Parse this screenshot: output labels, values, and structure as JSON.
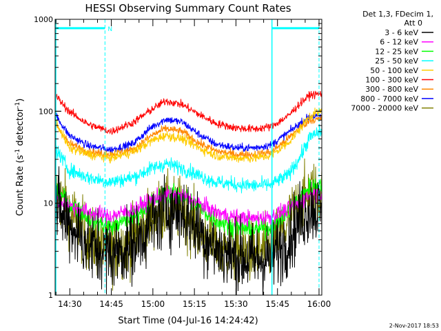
{
  "chart_data": {
    "type": "line",
    "title": "HESSI Observing Summary Count Rates",
    "xlabel": "Start Time (04-Jul-16 14:24:42)",
    "ylabel_main": "Count Rate (s",
    "ylabel_sup1": "-1",
    "ylabel_mid": " detector",
    "ylabel_sup2": "-1",
    "ylabel_end": ")",
    "y_scale": "log",
    "ylim": [
      1,
      1000
    ],
    "x_range_minutes": [
      0,
      96.3
    ],
    "x_ticks": [
      {
        "label": "14:30",
        "minutes": 5.3
      },
      {
        "label": "14:45",
        "minutes": 20.3
      },
      {
        "label": "15:00",
        "minutes": 35.3
      },
      {
        "label": "15:15",
        "minutes": 50.3
      },
      {
        "label": "15:30",
        "minutes": 65.3
      },
      {
        "label": "15:45",
        "minutes": 80.3
      },
      {
        "label": "16:00",
        "minutes": 95.3
      }
    ],
    "y_ticks": [
      {
        "label": "1",
        "value": 1
      },
      {
        "label": "10",
        "value": 10
      },
      {
        "label": "100",
        "value": 100
      },
      {
        "label": "1000",
        "value": 1000
      }
    ],
    "legend_header": [
      "Det 1,3, FDecim 1,",
      "Att 0"
    ],
    "legend_placement": "right",
    "timestamp": "2-Nov-2017 18:53",
    "annotations": {
      "night_marker": "N",
      "vertical_lines_minutes": [
        0,
        18.0,
        78.3,
        95.3
      ],
      "solid_vertical_minutes": [
        0,
        78.3
      ],
      "dashed_vertical_minutes": [
        18.0,
        95.3
      ],
      "top_bar_segments_minutes": [
        [
          0,
          18.0
        ],
        [
          78.3,
          95.3
        ]
      ],
      "top_bar_value": 800,
      "color": "#00ffff"
    },
    "x_keypoints": [
      0,
      5,
      12,
      20,
      28,
      35,
      40,
      46,
      52,
      58,
      65,
      72,
      78,
      84,
      88,
      92,
      96
    ],
    "series": [
      {
        "name": "3 - 6 keV",
        "color": "#000000",
        "values": [
          9,
          6,
          3.5,
          2.8,
          3.5,
          6,
          8.5,
          8,
          5,
          3.2,
          2.6,
          2.4,
          2.6,
          4,
          6.5,
          9,
          8.5
        ],
        "noise": 0.45
      },
      {
        "name": "6 - 12 keV",
        "color": "#ff00ff",
        "values": [
          11,
          9.5,
          8,
          7.2,
          8.5,
          11,
          12.5,
          12,
          10,
          8,
          7,
          6.8,
          7.2,
          8.5,
          10,
          12.5,
          12.5
        ],
        "noise": 0.1
      },
      {
        "name": "12 - 25 keV",
        "color": "#00ff00",
        "values": [
          14,
          10,
          7,
          5.5,
          7,
          10.5,
          13,
          12,
          9,
          6.5,
          5.5,
          5.2,
          5.5,
          8,
          11,
          15,
          16
        ],
        "noise": 0.12
      },
      {
        "name": "25 - 50 keV",
        "color": "#00ffff",
        "values": [
          40,
          23,
          19,
          17,
          19,
          24,
          27,
          24,
          20,
          17,
          16,
          15.5,
          16,
          20,
          30,
          52,
          60
        ],
        "noise": 0.09
      },
      {
        "name": "50 - 100 keV",
        "color": "#ffcc00",
        "values": [
          80,
          40,
          34,
          31,
          36,
          48,
          55,
          50,
          40,
          33,
          31,
          31,
          33,
          45,
          62,
          90,
          100
        ],
        "noise": 0.06
      },
      {
        "name": "100 - 300 keV",
        "color": "#ff0000",
        "values": [
          150,
          100,
          72,
          60,
          75,
          105,
          130,
          118,
          92,
          74,
          66,
          64,
          68,
          88,
          118,
          150,
          155
        ],
        "noise": 0.05
      },
      {
        "name": "300 - 800 keV",
        "color": "#ff8800",
        "values": [
          75,
          45,
          36,
          34,
          38,
          55,
          65,
          60,
          45,
          37,
          34,
          34,
          36,
          50,
          65,
          80,
          82
        ],
        "noise": 0.05
      },
      {
        "name": "800 - 7000 keV",
        "color": "#0000ff",
        "values": [
          92,
          55,
          42,
          38,
          44,
          68,
          82,
          76,
          56,
          44,
          40,
          40,
          43,
          58,
          72,
          88,
          88
        ],
        "noise": 0.05
      },
      {
        "name": "7000 - 20000 keV",
        "color": "#7f7f00",
        "values": [
          13,
          8.5,
          4,
          3,
          4,
          7,
          9,
          8.5,
          5,
          3.5,
          3,
          3,
          3.2,
          6,
          9.5,
          13,
          13
        ],
        "noise": 0.4
      }
    ]
  }
}
